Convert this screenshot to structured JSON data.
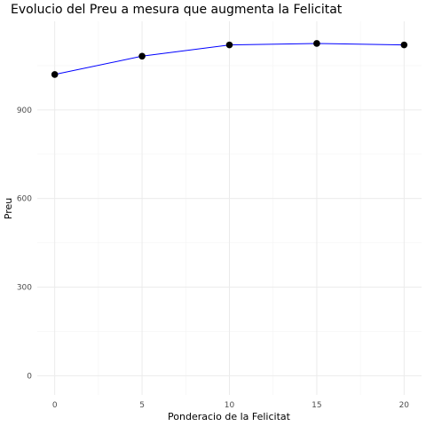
{
  "chart_data": {
    "type": "line",
    "title": "Evolucio del Preu a mesura que augmenta la Felicitat",
    "xlabel": "Ponderacio de la Felicitat",
    "ylabel": "Preu",
    "x": [
      0,
      5,
      10,
      15,
      20
    ],
    "series": [
      {
        "values": [
          1020,
          1082,
          1120,
          1125,
          1120
        ]
      }
    ],
    "xlim": [
      -1,
      21
    ],
    "ylim": [
      -65,
      1200
    ],
    "xticks": [
      0,
      5,
      10,
      15,
      20
    ],
    "yticks": [
      0,
      300,
      600,
      900
    ],
    "grid": true,
    "colors": {
      "line": "#0000ff",
      "points": "#000000"
    }
  }
}
